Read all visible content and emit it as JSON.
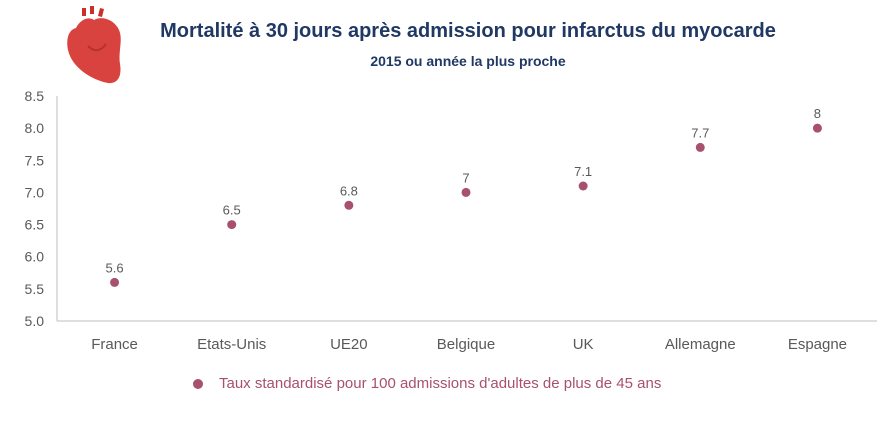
{
  "chart_data": {
    "type": "scatter",
    "title": "Mortalité à 30 jours après admission pour infarctus du myocarde",
    "subtitle": "2015 ou année la plus proche",
    "categories": [
      "France",
      "Etats-Unis",
      "UE20",
      "Belgique",
      "UK",
      "Allemagne",
      "Espagne"
    ],
    "series": [
      {
        "name": "Taux standardisé pour 100 admissions d'adultes de plus de 45 ans",
        "values": [
          5.6,
          6.5,
          6.8,
          7,
          7.1,
          7.7,
          8
        ],
        "labels": [
          "5.6",
          "6.5",
          "6.8",
          "7",
          "7.1",
          "7.7",
          "8"
        ]
      }
    ],
    "y_ticks": [
      "5.0",
      "5.5",
      "6.0",
      "6.5",
      "7.0",
      "7.5",
      "8.0",
      "8.5"
    ],
    "ylim": [
      5.0,
      8.5
    ],
    "grid": false,
    "legend_position": "bottom",
    "colors": {
      "marker": "#a85070",
      "title": "#1f3864",
      "axis": "#bfbfbf",
      "tick_text": "#595959",
      "heart": "#d9433f"
    },
    "icon": "heart-icon"
  }
}
